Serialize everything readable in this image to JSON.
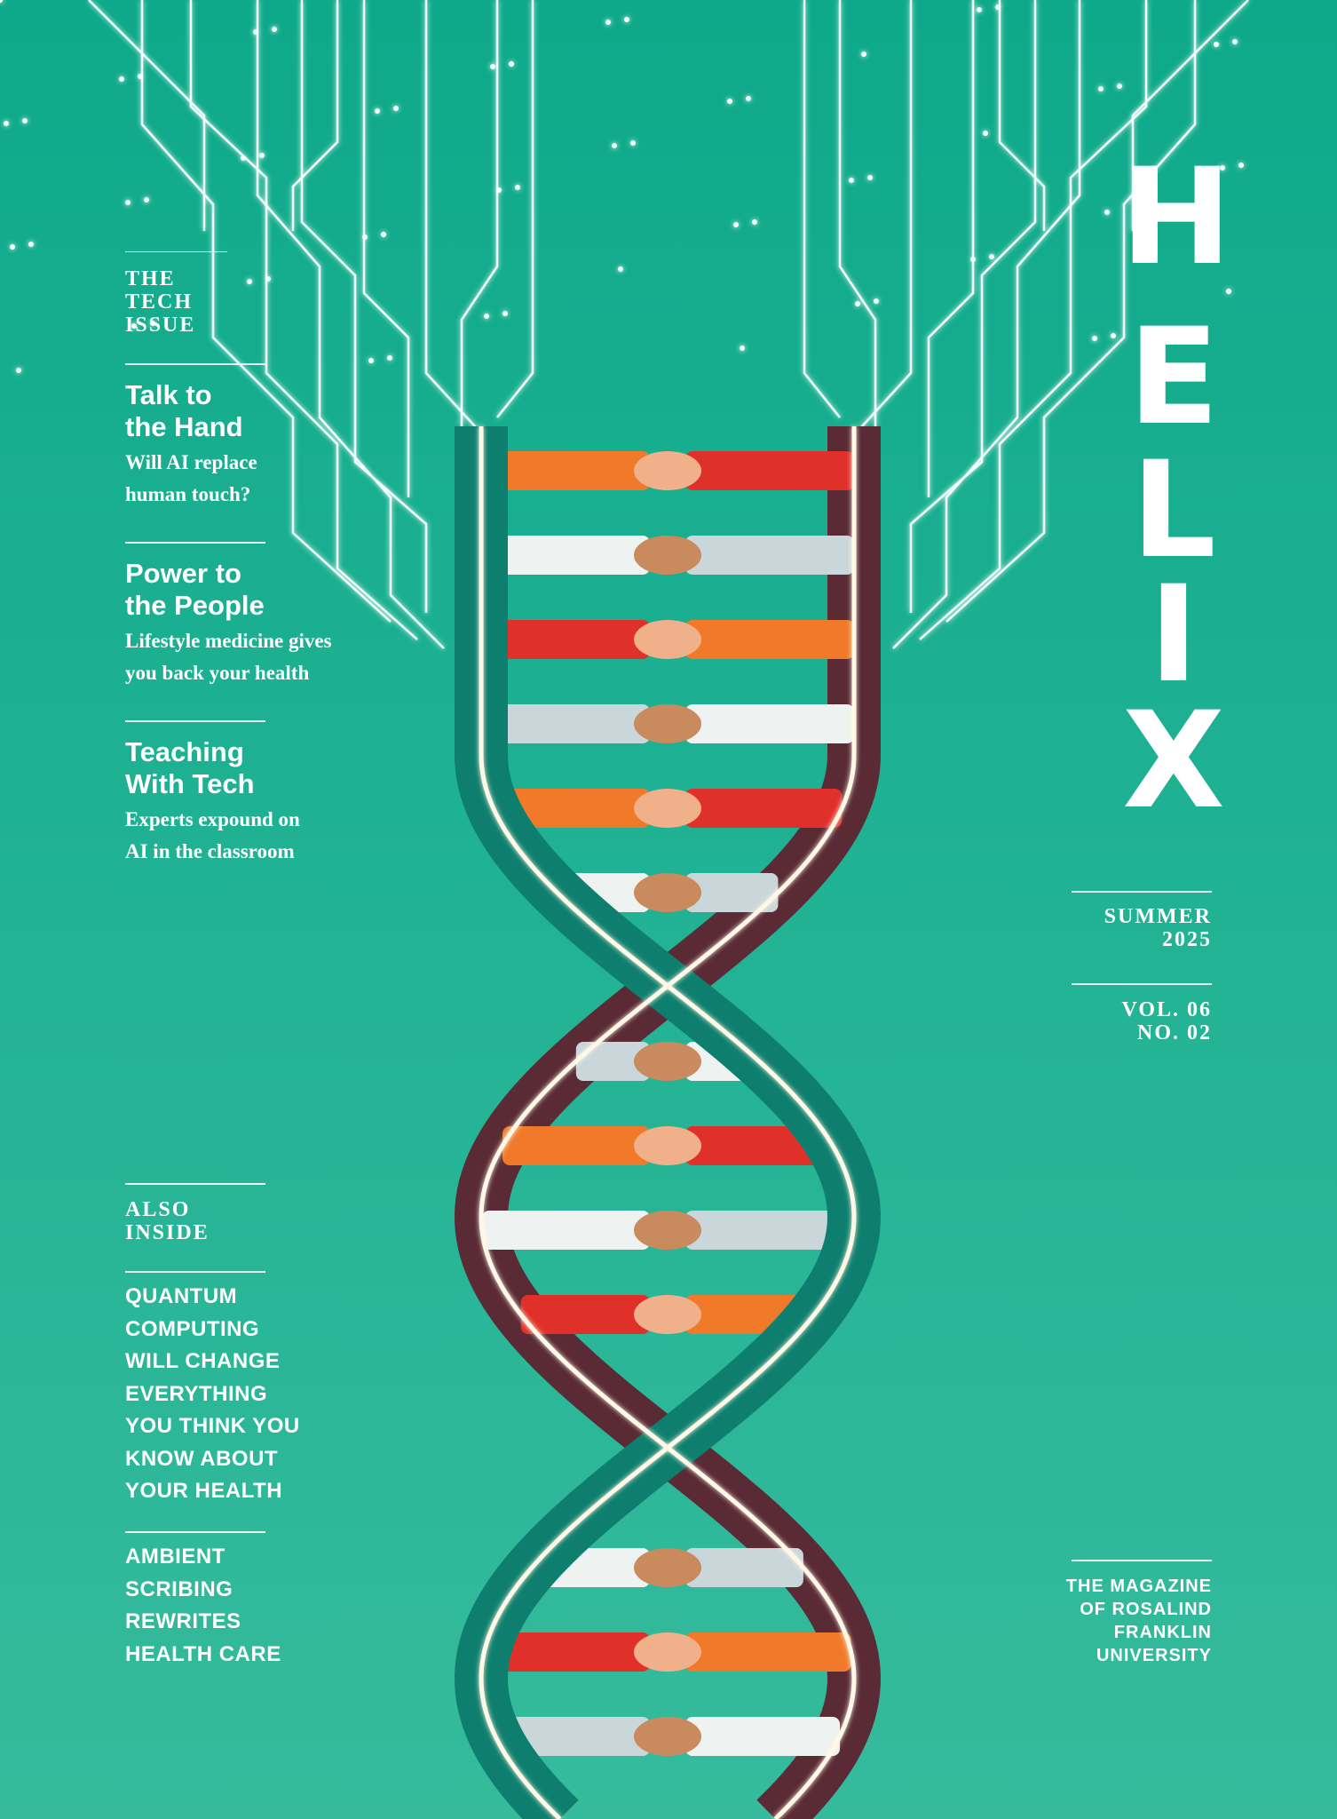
{
  "colors": {
    "background_top": "#0ea98a",
    "background_bottom": "#35bb9c",
    "helix_teal": "#0e7f6e",
    "helix_dark": "#5a2a35",
    "strand_glow": "#fff8e6",
    "sleeve_orange": "#f07a2a",
    "sleeve_red": "#e0302a",
    "sleeve_white": "#eef2f0",
    "robot_gray": "#c9d6da"
  },
  "masthead": {
    "letters": [
      "H",
      "E",
      "L",
      "I",
      "X"
    ]
  },
  "kicker": [
    "THE",
    "TECH",
    "ISSUE"
  ],
  "stories": [
    {
      "title": [
        "Talk to",
        "the Hand"
      ],
      "dek": [
        "Will AI replace",
        "human touch?"
      ]
    },
    {
      "title": [
        "Power to",
        "the People"
      ],
      "dek": [
        "Lifestyle medicine gives",
        "you back your health"
      ]
    },
    {
      "title": [
        "Teaching",
        "With Tech"
      ],
      "dek": [
        "Experts expound on",
        "AI in the classroom"
      ]
    }
  ],
  "also_inside": {
    "label": [
      "ALSO",
      "INSIDE"
    ],
    "items": [
      [
        "QUANTUM",
        "COMPUTING",
        "WILL CHANGE",
        "EVERYTHING",
        "YOU THINK YOU",
        "KNOW ABOUT",
        "YOUR HEALTH"
      ],
      [
        "AMBIENT",
        "SCRIBING",
        "REWRITES",
        "HEALTH CARE"
      ]
    ]
  },
  "issue": {
    "season": [
      "SUMMER",
      "2025"
    ],
    "volume": [
      "VOL. 06",
      "NO. 02"
    ]
  },
  "publisher": [
    "THE MAGAZINE",
    "OF ROSALIND",
    "FRANKLIN",
    "UNIVERSITY"
  ],
  "illustration": {
    "icon": "dna-helix-of-handshakes-with-circuit-traces"
  }
}
